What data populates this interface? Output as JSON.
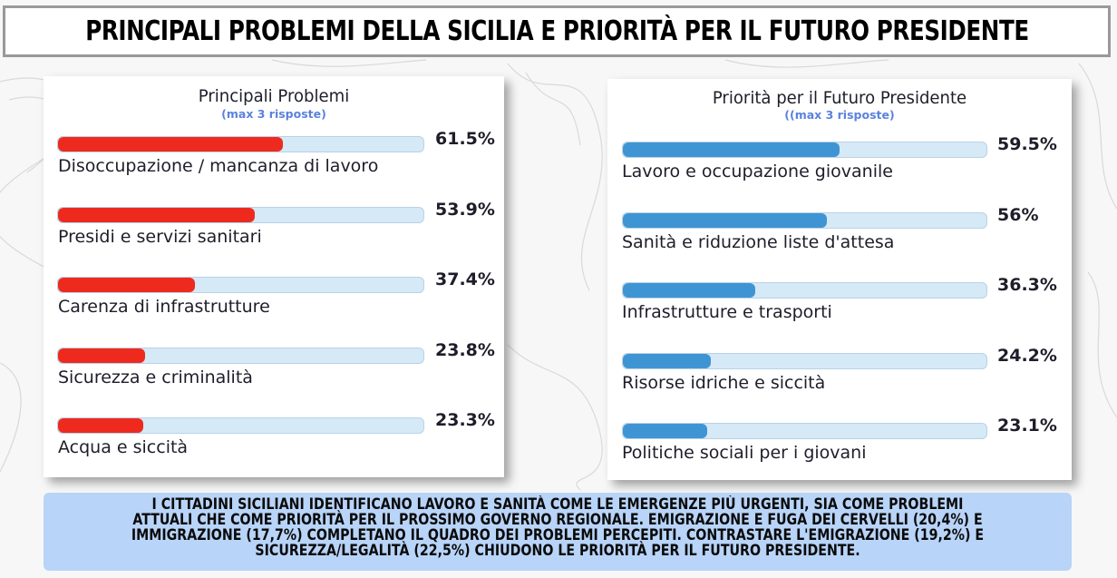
{
  "title": "PRINCIPALI PROBLEMI DELLA SICILIA E PRIORITÀ PER IL FUTURO PRESIDENTE",
  "colors": {
    "problems_bar": "#ee2a1f",
    "priorities_bar": "#3f95d3",
    "track": "#d6e9f7",
    "summary_bg": "#b8d4f8",
    "subtitle": "#5b82dd"
  },
  "chart_data": [
    {
      "type": "bar",
      "orientation": "horizontal",
      "title": "Principali Problemi",
      "subtitle": "(max 3 risposte)",
      "xlim": [
        0,
        100
      ],
      "unit": "%",
      "categories": [
        "Disoccupazione / mancanza di lavoro",
        "Presidi e servizi sanitari",
        "Carenza di infrastrutture",
        "Sicurezza e criminalità",
        "Acqua e siccità"
      ],
      "values": [
        61.5,
        53.9,
        37.4,
        23.8,
        23.3
      ],
      "labels": [
        "61.5%",
        "53.9%",
        "37.4%",
        "23.8%",
        "23.3%"
      ]
    },
    {
      "type": "bar",
      "orientation": "horizontal",
      "title": "Priorità per il Futuro Presidente",
      "subtitle": "((max 3 risposte)",
      "xlim": [
        0,
        100
      ],
      "unit": "%",
      "categories": [
        "Lavoro e occupazione giovanile",
        "Sanità e riduzione liste d'attesa",
        "Infrastrutture e trasporti",
        "Risorse idriche e siccità",
        "Politiche sociali per i giovani"
      ],
      "values": [
        59.5,
        56,
        36.3,
        24.2,
        23.1
      ],
      "labels": [
        "59.5%",
        "56%",
        "36.3%",
        "24.2%",
        "23.1%"
      ]
    }
  ],
  "summary": "I CITTADINI SICILIANI IDENTIFICANO LAVORO E SANITÀ COME LE EMERGENZE PIÙ URGENTI, SIA COME PROBLEMI ATTUALI CHE COME PRIORITÀ PER IL PROSSIMO GOVERNO REGIONALE. EMIGRAZIONE E FUGA DEI CERVELLI (20,4%) E IMMIGRAZIONE (17,7%) COMPLETANO IL QUADRO DEI PROBLEMI PERCEPITI. CONTRASTARE L'EMIGRAZIONE (19,2%) E SICUREZZA/LEGALITÀ (22,5%) CHIUDONO LE PRIORITÀ PER IL FUTURO PRESIDENTE."
}
